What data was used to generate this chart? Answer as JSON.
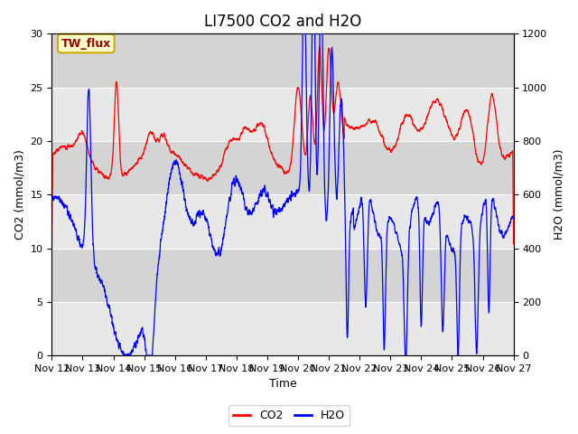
{
  "title": "LI7500 CO2 and H2O",
  "xlabel": "Time",
  "ylabel_left": "CO2 (mmol/m3)",
  "ylabel_right": "H2O (mmol/m3)",
  "ylim_left": [
    0,
    30
  ],
  "ylim_right": [
    0,
    1200
  ],
  "x_ticks": [
    "Nov 12",
    "Nov 13",
    "Nov 14",
    "Nov 15",
    "Nov 16",
    "Nov 17",
    "Nov 18",
    "Nov 19",
    "Nov 20",
    "Nov 21",
    "Nov 22",
    "Nov 23",
    "Nov 24",
    "Nov 25",
    "Nov 26",
    "Nov 27"
  ],
  "legend_labels": [
    "CO2",
    "H2O"
  ],
  "legend_colors": [
    "red",
    "blue"
  ],
  "annotation_text": "TW_flux",
  "annotation_bg": "#ffffcc",
  "annotation_border": "#ccaa00",
  "title_fontsize": 12,
  "axis_fontsize": 9,
  "tick_fontsize": 8,
  "band_y": [
    0,
    5,
    10,
    15,
    20,
    25,
    30
  ],
  "band_colors": [
    "#e8e8e8",
    "#d4d4d4",
    "#e8e8e8",
    "#d4d4d4",
    "#e8e8e8",
    "#d4d4d4"
  ]
}
